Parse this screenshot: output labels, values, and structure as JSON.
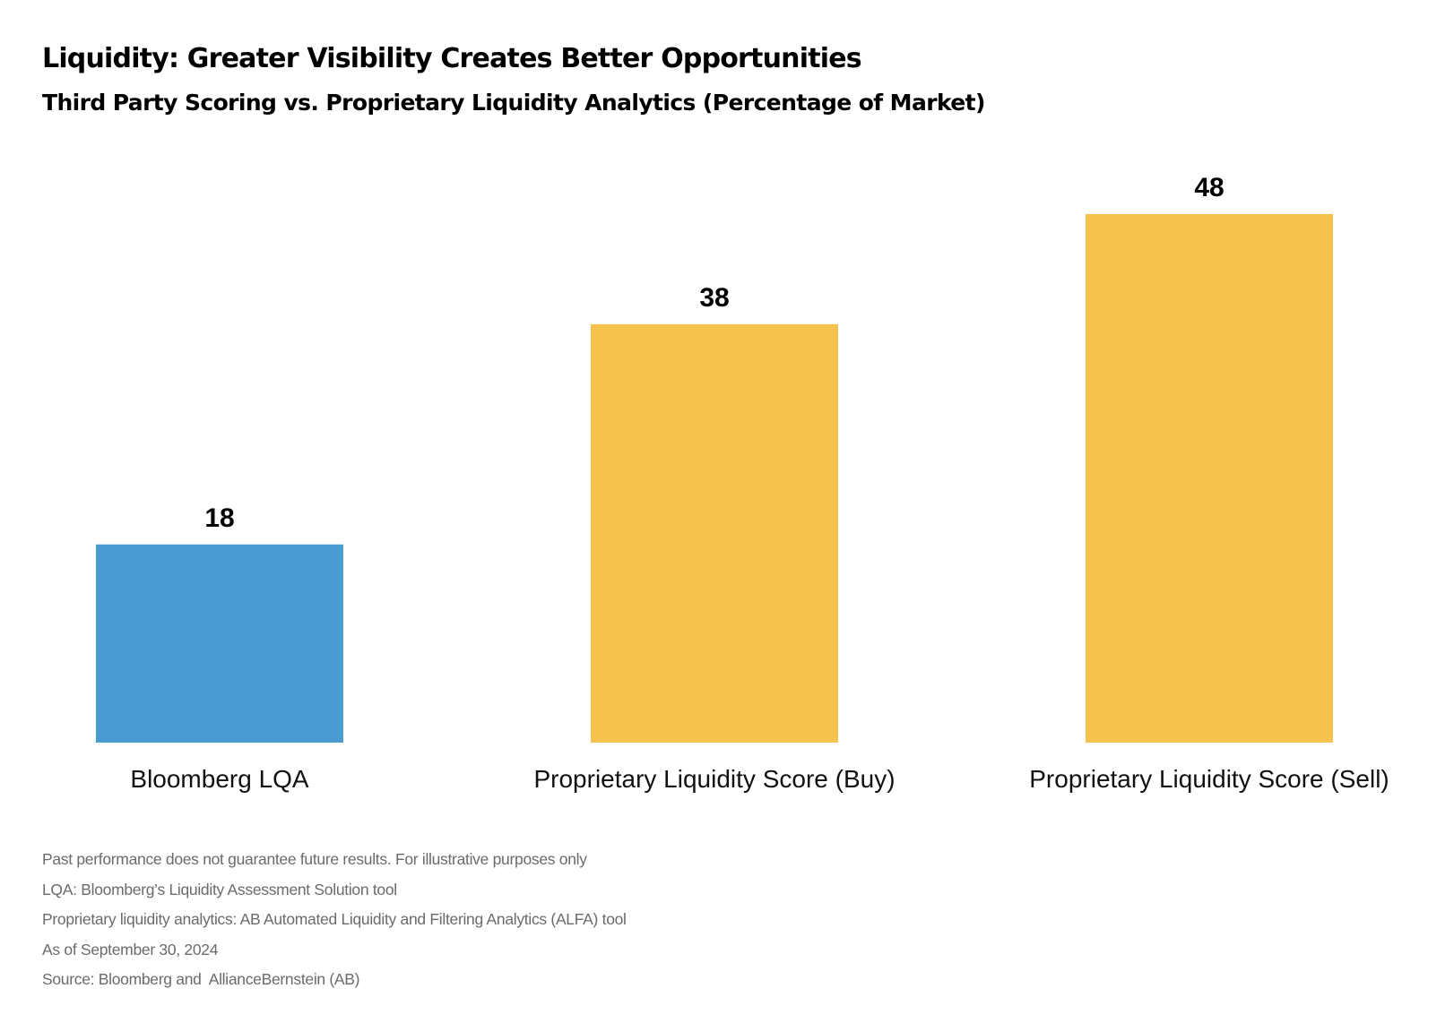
{
  "title": "Liquidity: Greater Visibility Creates Better Opportunities",
  "subtitle": "Third Party Scoring vs. Proprietary Liquidity Analytics (Percentage of Market)",
  "chart_data": {
    "type": "bar",
    "categories": [
      "Bloomberg LQA",
      "Proprietary Liquidity Score (Buy)",
      "Proprietary Liquidity Score (Sell)"
    ],
    "values": [
      18,
      38,
      48
    ],
    "colors": [
      "#4a9ad4",
      "#f5c24e",
      "#f5c24e"
    ],
    "data_labels": [
      "18",
      "38",
      "48"
    ],
    "ylim": [
      0,
      48
    ],
    "grid": false,
    "y_axis_visible": false
  },
  "footnotes": [
    "Past performance does not guarantee future results. For illustrative purposes only",
    "LQA: Bloomberg’s Liquidity Assessment Solution tool",
    "Proprietary liquidity analytics: AB Automated Liquidity and Filtering Analytics (ALFA) tool",
    "As of September 30, 2024",
    "Source: Bloomberg and  AllianceBernstein (AB)"
  ]
}
